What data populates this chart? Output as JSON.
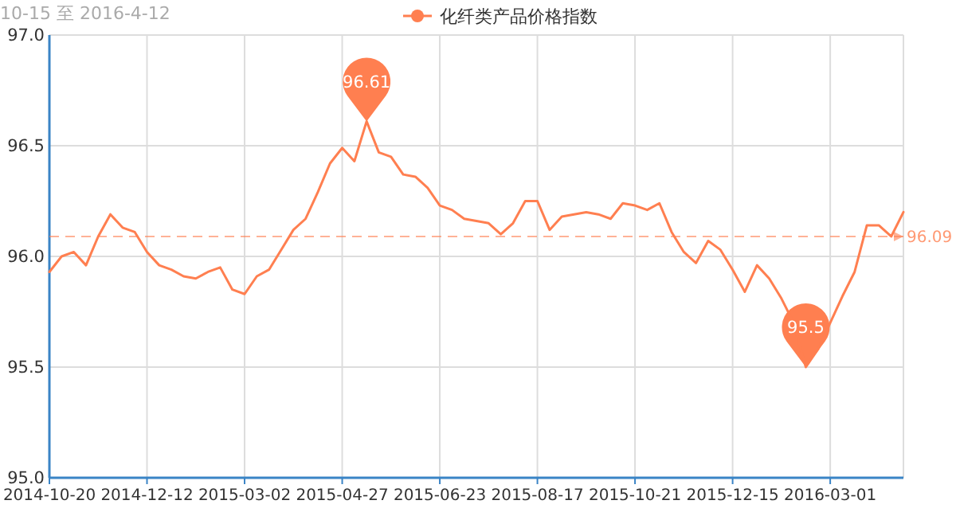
{
  "chart_data": {
    "type": "line",
    "subtitle": "10-15 至 2016-4-12",
    "categories": [
      "2014-10-20",
      null,
      null,
      null,
      null,
      null,
      null,
      null,
      "2014-12-12",
      null,
      null,
      null,
      null,
      null,
      null,
      null,
      "2015-03-02",
      null,
      null,
      null,
      null,
      null,
      null,
      null,
      "2015-04-27",
      null,
      null,
      null,
      null,
      null,
      null,
      null,
      "2015-06-23",
      null,
      null,
      null,
      null,
      null,
      null,
      null,
      "2015-08-17",
      null,
      null,
      null,
      null,
      null,
      null,
      null,
      "2015-10-21",
      null,
      null,
      null,
      null,
      null,
      null,
      null,
      "2015-12-15",
      null,
      null,
      null,
      null,
      null,
      null,
      null,
      "2016-03-01",
      null,
      null,
      null,
      null,
      null,
      null
    ],
    "series": [
      {
        "name": "化纤类产品价格指数",
        "color": "#ff7f50",
        "values": [
          95.93,
          96.0,
          96.02,
          95.96,
          96.09,
          96.19,
          96.13,
          96.11,
          96.02,
          95.96,
          95.94,
          95.91,
          95.9,
          95.93,
          95.95,
          95.85,
          95.83,
          95.91,
          95.94,
          96.03,
          96.12,
          96.17,
          96.29,
          96.42,
          96.49,
          96.43,
          96.61,
          96.47,
          96.45,
          96.37,
          96.36,
          96.31,
          96.23,
          96.21,
          96.17,
          96.16,
          96.15,
          96.1,
          96.15,
          96.25,
          96.25,
          96.12,
          96.18,
          96.19,
          96.2,
          96.19,
          96.17,
          96.24,
          96.23,
          96.21,
          96.24,
          96.11,
          96.02,
          95.97,
          96.07,
          96.03,
          95.94,
          95.84,
          95.96,
          95.9,
          95.81,
          95.7,
          95.5,
          95.58,
          95.7,
          95.82,
          95.93,
          96.14,
          96.14,
          96.09,
          96.2
        ]
      }
    ],
    "ylim": [
      95.0,
      97.0
    ],
    "yticks": [
      {
        "value": 95.0,
        "label": "95.0"
      },
      {
        "value": 95.5,
        "label": "95.5"
      },
      {
        "value": 96.0,
        "label": "96.0"
      },
      {
        "value": 96.5,
        "label": "96.5"
      },
      {
        "value": 97.0,
        "label": "97.0"
      }
    ],
    "grid": true,
    "legend": "top",
    "ref_lines": [
      {
        "axis": "y",
        "value": 96.09,
        "label": "96.09",
        "line_style": "dashed"
      }
    ],
    "annotations": [
      {
        "text": "96.61",
        "y": 96.61
      },
      {
        "text": "95.5",
        "y": 95.5
      }
    ]
  }
}
